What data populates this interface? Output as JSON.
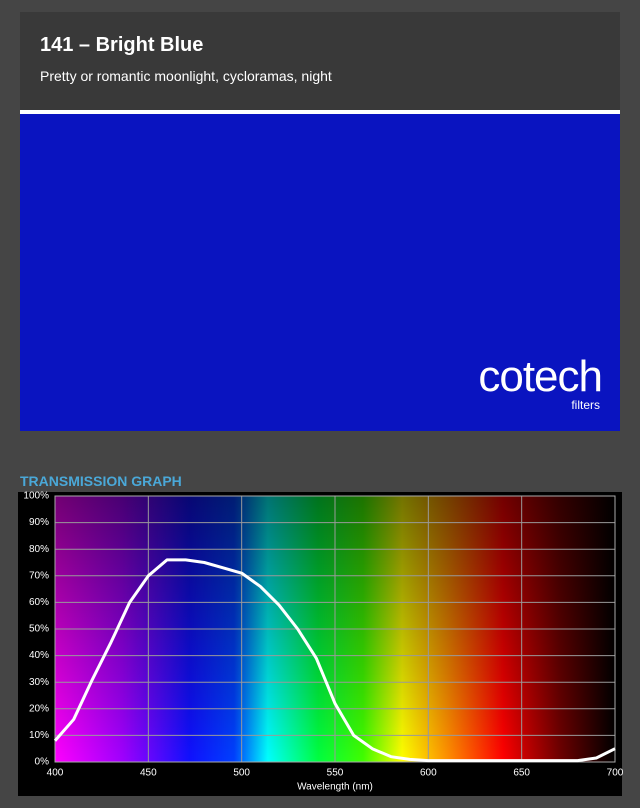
{
  "header": {
    "title": "141 – Bright Blue",
    "subtitle": "Pretty or romantic moonlight, cycloramas, night"
  },
  "swatch": {
    "color": "#0a14c0",
    "logo": "cotech",
    "logo_sub": "filters"
  },
  "section_title": "TRANSMISSION GRAPH",
  "chart_data": {
    "type": "line",
    "x_label": "Wavelength (nm)",
    "series": [
      {
        "color": "#ffffff",
        "x": [
          400,
          410,
          420,
          430,
          440,
          450,
          460,
          470,
          480,
          490,
          500,
          510,
          520,
          530,
          540,
          550,
          560,
          570,
          580,
          590,
          600,
          610,
          620,
          630,
          640,
          650,
          660,
          670,
          680,
          690,
          700
        ],
        "values": [
          8,
          16,
          31,
          45,
          60,
          70,
          76,
          76,
          75,
          73,
          71,
          66,
          59,
          50,
          39,
          22,
          10,
          5,
          2,
          1,
          0.5,
          0.5,
          0.5,
          0.5,
          0.5,
          0.5,
          0.5,
          0.5,
          0.5,
          1.5,
          5
        ]
      }
    ],
    "xlim": [
      400,
      700
    ],
    "xticks": [
      400,
      450,
      500,
      550,
      600,
      650,
      700
    ],
    "ylim": [
      0,
      100
    ],
    "yticks": [
      {
        "value": 0,
        "label": "0%"
      },
      {
        "value": 10,
        "label": "10%"
      },
      {
        "value": 20,
        "label": "20%"
      },
      {
        "value": 30,
        "label": "30%"
      },
      {
        "value": 40,
        "label": "40%"
      },
      {
        "value": 50,
        "label": "50%"
      },
      {
        "value": 60,
        "label": "60%"
      },
      {
        "value": 70,
        "label": "70%"
      },
      {
        "value": 80,
        "label": "80%"
      },
      {
        "value": 90,
        "label": "90%"
      },
      {
        "value": 100,
        "label": "100%"
      }
    ],
    "grid": true
  }
}
